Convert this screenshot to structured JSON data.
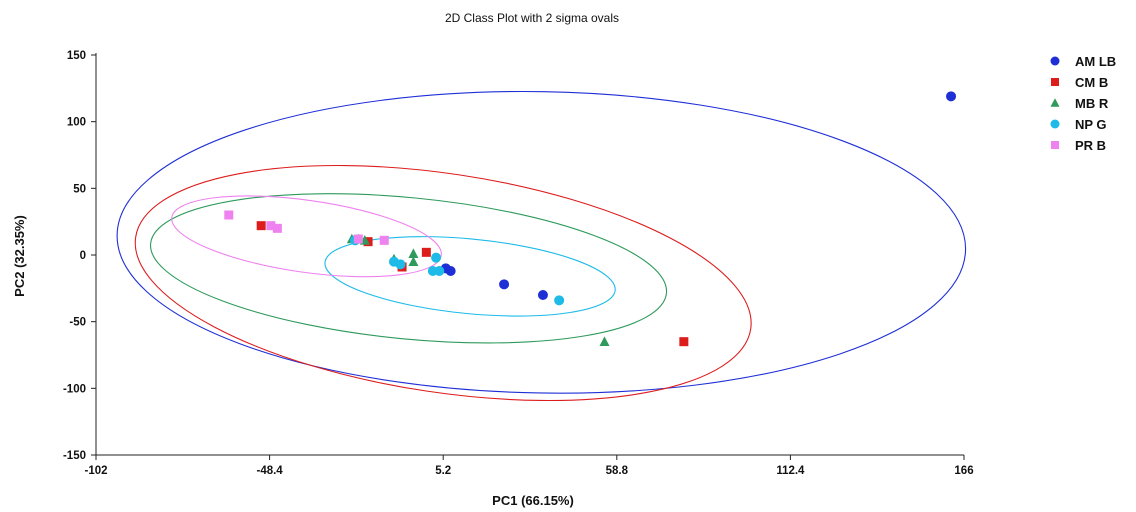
{
  "chart_data": {
    "type": "scatter",
    "title": "2D Class Plot with 2 sigma ovals",
    "xlabel": "PC1 (66.15%)",
    "ylabel": "PC2 (32.35%)",
    "xlim": [
      -102,
      166
    ],
    "ylim": [
      -150,
      150
    ],
    "x_ticks": [
      "-102",
      "-48.4",
      "5.2",
      "58.8",
      "112.4",
      "166"
    ],
    "y_ticks": [
      "150",
      "100",
      "50",
      "0",
      "-50",
      "-100",
      "-150"
    ],
    "legend_position": "top-right",
    "series": [
      {
        "name": "AM LB",
        "marker": "circle",
        "color": "#1f2fd6",
        "points": [
          [
            162,
            119
          ],
          [
            6,
            -10
          ],
          [
            7.5,
            -12
          ],
          [
            24,
            -22
          ],
          [
            36,
            -30
          ]
        ],
        "ellipse": {
          "cx": 35.5,
          "cy": 9.5,
          "rx": 131,
          "ry": 113,
          "angle_deg": 1.0
        }
      },
      {
        "name": "CM B",
        "marker": "square",
        "color": "#dd1c1c",
        "points": [
          [
            -51,
            22
          ],
          [
            -18,
            10
          ],
          [
            0,
            2
          ],
          [
            -7.5,
            -9
          ],
          [
            79.5,
            -65
          ]
        ],
        "ellipse": {
          "cx": 5.2,
          "cy": -21,
          "rx": 96,
          "ry": 82,
          "angle_deg": 8.5
        }
      },
      {
        "name": "MB R",
        "marker": "triangle",
        "color": "#2e9a5c",
        "points": [
          [
            -23,
            12
          ],
          [
            -21,
            12
          ],
          [
            -19,
            11
          ],
          [
            -4,
            1
          ],
          [
            -10,
            -3
          ],
          [
            -4,
            -5
          ],
          [
            55,
            -65
          ]
        ],
        "ellipse": {
          "cx": -5.5,
          "cy": -10,
          "rx": 80,
          "ry": 53,
          "angle_deg": 5.5
        }
      },
      {
        "name": "NP G",
        "marker": "circle",
        "color": "#1ebbe8",
        "points": [
          [
            -22,
            11
          ],
          [
            -10,
            -5
          ],
          [
            -8,
            -7
          ],
          [
            3,
            -2
          ],
          [
            2,
            -12
          ],
          [
            4,
            -12
          ],
          [
            41,
            -34
          ]
        ],
        "ellipse": {
          "cx": 13.5,
          "cy": -16,
          "rx": 45,
          "ry": 28,
          "angle_deg": 5.5
        }
      },
      {
        "name": "PR B",
        "marker": "square",
        "color": "#ee82ee",
        "points": [
          [
            -61,
            30
          ],
          [
            -48,
            22
          ],
          [
            -46,
            20
          ],
          [
            -21,
            12
          ],
          [
            -13,
            11
          ]
        ],
        "ellipse": {
          "cx": -37,
          "cy": 14,
          "rx": 42,
          "ry": 27,
          "angle_deg": 8.0
        }
      }
    ]
  }
}
